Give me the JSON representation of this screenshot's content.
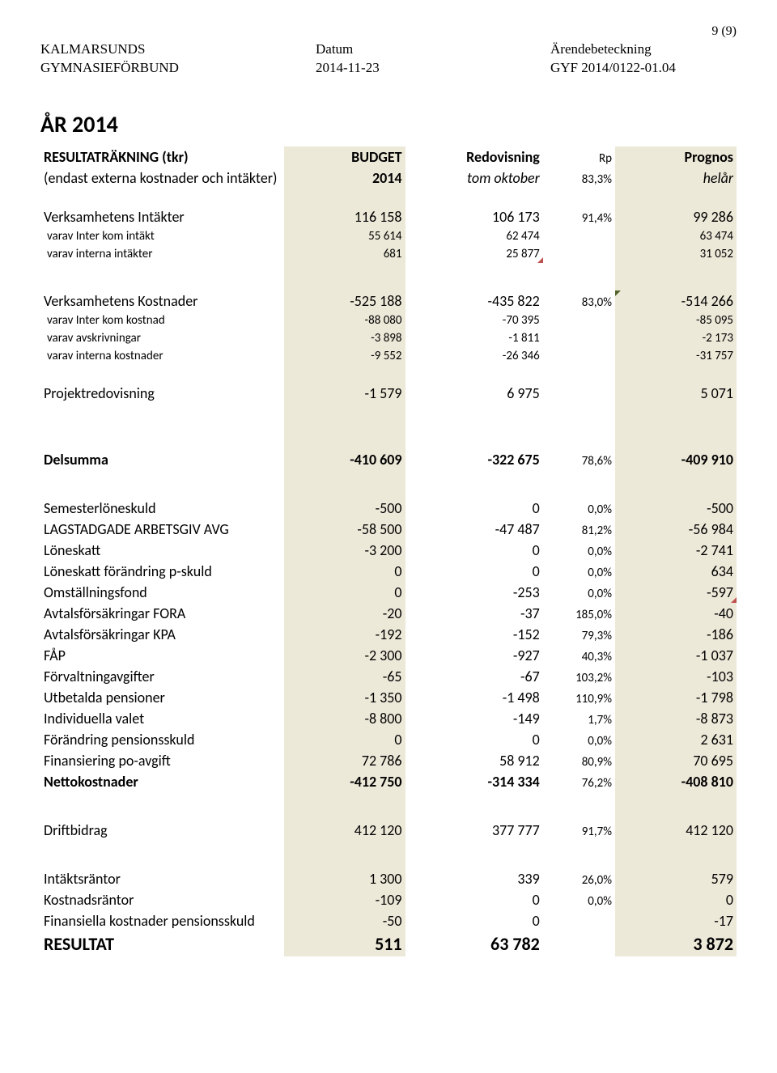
{
  "page_number": "9 (9)",
  "header": {
    "org_line1": "KALMARSUNDS",
    "org_line2": "GYMNASIEFÖRBUND",
    "date_label": "Datum",
    "date_value": "2014-11-23",
    "ref_label": "Ärendebeteckning",
    "ref_value": "GYF 2014/0122-01.04"
  },
  "title": "ÅR 2014",
  "colhead": {
    "label1": "RESULTATRÄKNING (tkr)",
    "label2": "(endast externa kostnader och intäkter)",
    "budget1": "BUDGET",
    "budget2": "2014",
    "redo1": "Redovisning",
    "redo2": "tom oktober",
    "rp1": "Rp",
    "rp2": "83,3%",
    "prog1": "Prognos",
    "prog2": "helår"
  },
  "rows": {
    "intakter": {
      "l": "Verksamhetens Intäkter",
      "b": "116 158",
      "r": "106 173",
      "p": "91,4%",
      "pg": "99 286"
    },
    "interkom_int": {
      "l": "varav Inter kom intäkt",
      "b": "55 614",
      "r": "62 474",
      "p": "",
      "pg": "63 474"
    },
    "interna_int": {
      "l": "varav interna intäkter",
      "b": "681",
      "r": "25 877",
      "p": "",
      "pg": "31 052"
    },
    "kostnader": {
      "l": "Verksamhetens Kostnader",
      "b": "-525 188",
      "r": "-435 822",
      "p": "83,0%",
      "pg": "-514 266"
    },
    "interkom_kost": {
      "l": "varav Inter kom kostnad",
      "b": "-88 080",
      "r": "-70 395",
      "p": "",
      "pg": "-85 095"
    },
    "avskriv": {
      "l": "varav avskrivningar",
      "b": "-3 898",
      "r": "-1 811",
      "p": "",
      "pg": "-2 173"
    },
    "interna_kost": {
      "l": "varav interna kostnader",
      "b": "-9 552",
      "r": "-26 346",
      "p": "",
      "pg": "-31 757"
    },
    "projekt": {
      "l": "Projektredovisning",
      "b": "-1 579",
      "r": "6 975",
      "p": "",
      "pg": "5 071"
    },
    "delsumma": {
      "l": "Delsumma",
      "b": "-410 609",
      "r": "-322 675",
      "p": "78,6%",
      "pg": "-409 910"
    },
    "semester": {
      "l": "Semesterlöneskuld",
      "b": "-500",
      "r": "0",
      "p": "0,0%",
      "pg": "-500"
    },
    "lagstad": {
      "l": "LAGSTADGADE ARBETSGIV AVG",
      "b": "-58 500",
      "r": "-47 487",
      "p": "81,2%",
      "pg": "-56 984"
    },
    "loneskatt": {
      "l": "Löneskatt",
      "b": "-3 200",
      "r": "0",
      "p": "0,0%",
      "pg": "-2 741"
    },
    "loneskatt_p": {
      "l": "Löneskatt förändring p-skuld",
      "b": "0",
      "r": "0",
      "p": "0,0%",
      "pg": "634"
    },
    "omst": {
      "l": "Omställningsfond",
      "b": "0",
      "r": "-253",
      "p": "0,0%",
      "pg": "-597"
    },
    "fora": {
      "l": "Avtalsförsäkringar FORA",
      "b": "-20",
      "r": "-37",
      "p": "185,0%",
      "pg": "-40"
    },
    "kpa": {
      "l": "Avtalsförsäkringar KPA",
      "b": "-192",
      "r": "-152",
      "p": "79,3%",
      "pg": "-186"
    },
    "fap": {
      "l": "FÅP",
      "b": "-2 300",
      "r": "-927",
      "p": "40,3%",
      "pg": "-1 037"
    },
    "forvalt": {
      "l": "Förvaltningavgifter",
      "b": "-65",
      "r": "-67",
      "p": "103,2%",
      "pg": "-103"
    },
    "utbet": {
      "l": "Utbetalda pensioner",
      "b": "-1 350",
      "r": "-1 498",
      "p": "110,9%",
      "pg": "-1 798"
    },
    "indiv": {
      "l": "Individuella valet",
      "b": "-8 800",
      "r": "-149",
      "p": "1,7%",
      "pg": "-8 873"
    },
    "forand": {
      "l": "Förändring pensionsskuld",
      "b": "0",
      "r": "0",
      "p": "0,0%",
      "pg": "2 631"
    },
    "finpo": {
      "l": "Finansiering po-avgift",
      "b": "72 786",
      "r": "58 912",
      "p": "80,9%",
      "pg": "70 695"
    },
    "netto": {
      "l": "Nettokostnader",
      "b": "-412 750",
      "r": "-314 334",
      "p": "76,2%",
      "pg": "-408 810"
    },
    "drift": {
      "l": "Driftbidrag",
      "b": "412 120",
      "r": "377 777",
      "p": "91,7%",
      "pg": "412 120"
    },
    "intrant": {
      "l": "Intäktsräntor",
      "b": "1 300",
      "r": "339",
      "p": "26,0%",
      "pg": "579"
    },
    "kostrant": {
      "l": "Kostnadsräntor",
      "b": "-109",
      "r": "0",
      "p": "0,0%",
      "pg": "0"
    },
    "finkost": {
      "l": "Finansiella kostnader pensionsskuld",
      "b": "-50",
      "r": "0",
      "p": "",
      "pg": "-17"
    },
    "resultat": {
      "l": "RESULTAT",
      "b": "511",
      "r": "63 782",
      "p": "",
      "pg": "3 872"
    }
  },
  "style": {
    "highlight_bg": "#ede9d9",
    "corner_red": "#c0504d",
    "corner_green": "#4f6228"
  }
}
